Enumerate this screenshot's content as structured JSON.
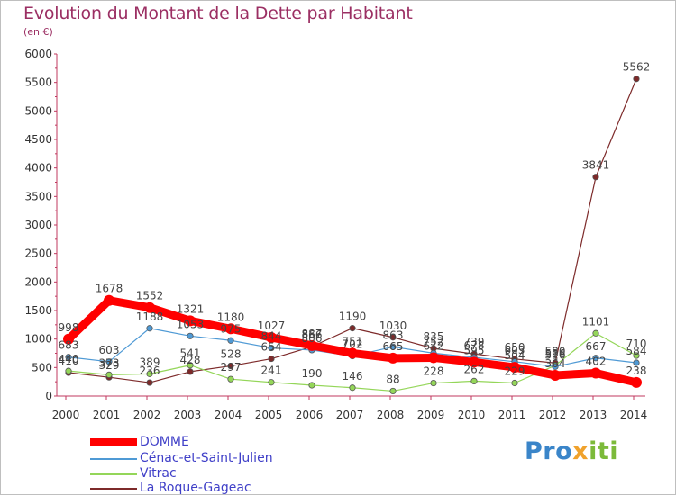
{
  "brand": {
    "name_part1": "Pro",
    "name_part2": "x",
    "name_part3": "iti"
  },
  "chart_data": {
    "type": "line",
    "title": "Evolution du Montant de la Dette par Habitant",
    "subtitle": "(en €)",
    "xlabel": "",
    "ylabel": "",
    "x": [
      2000,
      2001,
      2002,
      2003,
      2004,
      2005,
      2006,
      2007,
      2008,
      2009,
      2010,
      2011,
      2012,
      2013,
      2014
    ],
    "ylim": [
      0,
      6000
    ],
    "yticks": [
      0,
      500,
      1000,
      1500,
      2000,
      2500,
      3000,
      3500,
      4000,
      4500,
      5000,
      5500,
      6000
    ],
    "grid": false,
    "legend_position": "bottom-left",
    "series": [
      {
        "name": "DOMME",
        "color": "#ff0000",
        "values": [
          998,
          1678,
          1552,
          1321,
          1180,
          1027,
          887,
          751,
          665,
          672,
          595,
          504,
          364,
          402,
          238
        ]
      },
      {
        "name": "Cénac-et-Saint-Julien",
        "color": "#4f9ad5",
        "values": [
          683,
          603,
          1188,
          1053,
          975,
          844,
          806,
          702,
          863,
          752,
          678,
          603,
          516,
          667,
          584
        ]
      },
      {
        "name": "Vitrac",
        "color": "#94d659",
        "values": [
          440,
          373,
          389,
          541,
          297,
          241,
          190,
          146,
          88,
          228,
          262,
          229,
          536,
          1101,
          710
        ]
      },
      {
        "name": "La Roque-Gageac",
        "color": "#7d2a2a",
        "values": [
          410,
          329,
          236,
          428,
          528,
          654,
          866,
          1190,
          1030,
          835,
          739,
          650,
          580,
          3841,
          5562
        ]
      }
    ]
  }
}
